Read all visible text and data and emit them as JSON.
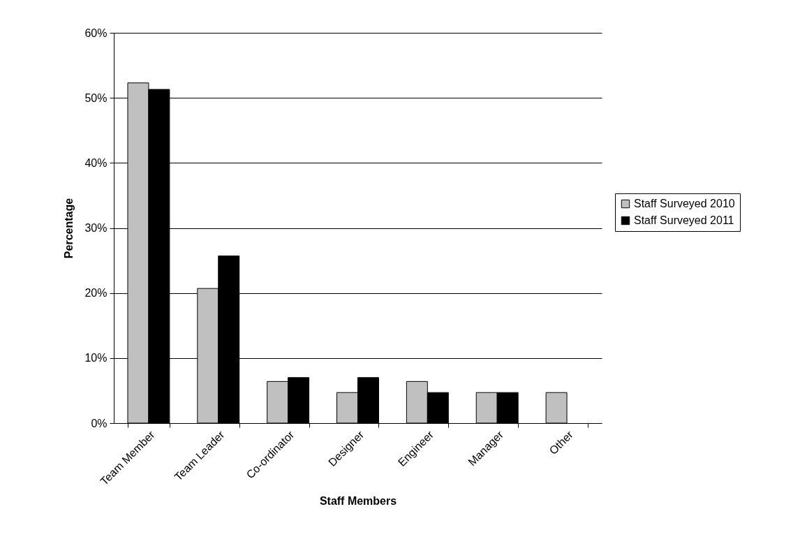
{
  "chart_data": {
    "type": "bar",
    "xlabel": "Staff Members",
    "ylabel": "Percentage",
    "categories": [
      "Team Member",
      "Team Leader",
      "Co-ordinator",
      "Designer",
      "Engineer",
      "Manager",
      "Other"
    ],
    "series": [
      {
        "name": "Staff Surveyed 2010",
        "color": "#c0c0c0",
        "values": [
          52.3,
          20.7,
          6.4,
          4.7,
          6.4,
          4.7,
          4.7
        ]
      },
      {
        "name": "Staff Surveyed 2011",
        "color": "#000000",
        "values": [
          51.3,
          25.7,
          7.0,
          7.0,
          4.7,
          4.7,
          null
        ]
      }
    ],
    "ylim": [
      0,
      60
    ],
    "yticks": [
      {
        "value": 0,
        "label": "0%"
      },
      {
        "value": 10,
        "label": "10%"
      },
      {
        "value": 20,
        "label": "20%"
      },
      {
        "value": 30,
        "label": "30%"
      },
      {
        "value": 40,
        "label": "40%"
      },
      {
        "value": 50,
        "label": "50%"
      },
      {
        "value": 60,
        "label": "60%"
      }
    ],
    "grid": "y",
    "legend": "right"
  }
}
